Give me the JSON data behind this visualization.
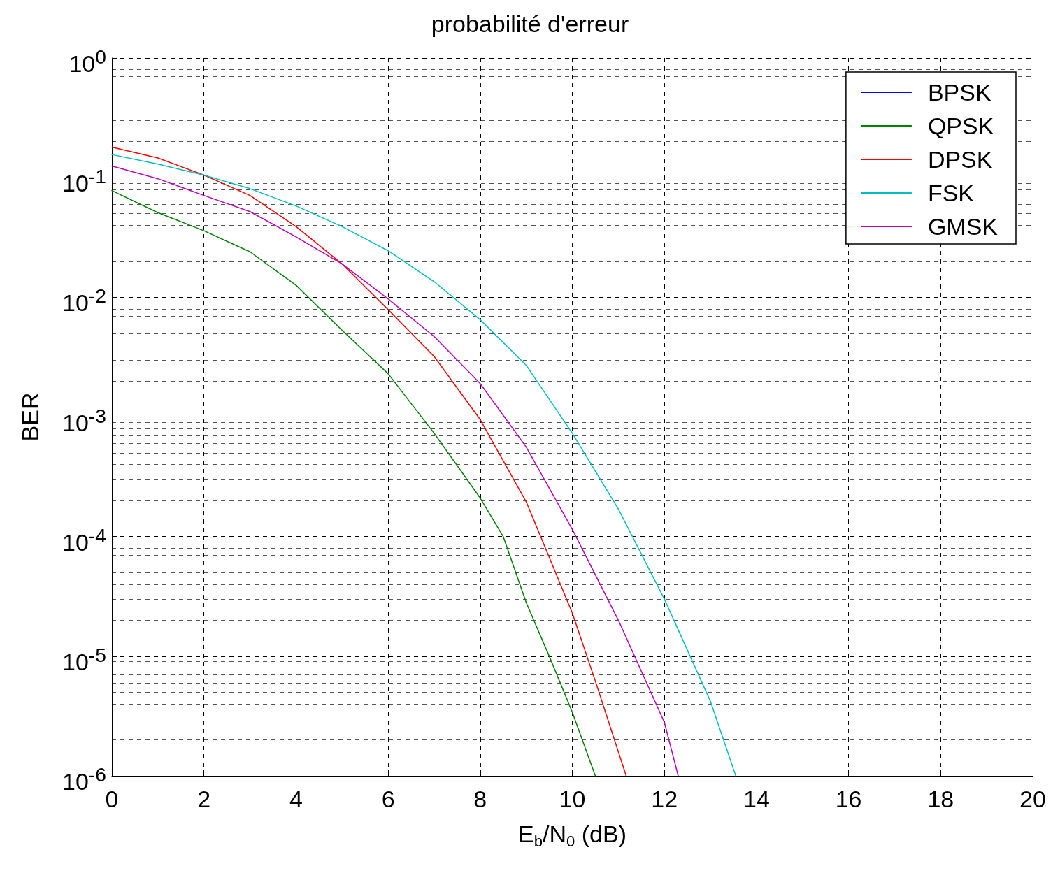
{
  "chart_data": {
    "type": "line",
    "title": "probabilité d'erreur",
    "xlabel": "E$_{b}$/N$_{0}$ (dB)",
    "ylabel": "BER",
    "log": "y",
    "grid": true,
    "legend": "top right",
    "xlim": [
      0,
      20
    ],
    "xticks": [
      0,
      2,
      4,
      6,
      8,
      10,
      12,
      14,
      16,
      18,
      20
    ],
    "ylim": [
      1e-06,
      1
    ],
    "yticks": [
      {
        "value": 1e-06,
        "label": "10$^{-6}$"
      },
      {
        "value": 1e-05,
        "label": "10$^{-5}$"
      },
      {
        "value": 0.0001,
        "label": "10$^{-4}$"
      },
      {
        "value": 0.001,
        "label": "10$^{-3}$"
      },
      {
        "value": 0.01,
        "label": "10$^{-2}$"
      },
      {
        "value": 0.1,
        "label": "10$^{-1}$"
      },
      {
        "value": 1,
        "label": "10$^{0}$"
      }
    ],
    "series": [
      {
        "name": "BPSK",
        "color": "#0000ff"
      },
      {
        "name": "QPSK",
        "color": "#008000",
        "x": [
          0,
          1,
          2,
          3,
          4,
          5,
          6,
          7,
          8,
          8.5,
          9,
          9.5,
          10,
          10.5
        ],
        "values": [
          0.078,
          0.051,
          0.036,
          0.024,
          0.0126,
          0.0053,
          0.0023,
          0.00073,
          0.00021,
          0.0001,
          2.8e-05,
          1e-05,
          3.4e-06,
          1e-06
        ]
      },
      {
        "name": "DPSK",
        "color": "#ff0000",
        "x": [
          0,
          1,
          2,
          3,
          4,
          5,
          6,
          7,
          8,
          9,
          10,
          10.5,
          11.17
        ],
        "values": [
          0.18,
          0.146,
          0.105,
          0.071,
          0.039,
          0.019,
          0.0079,
          0.0032,
          0.00095,
          0.000195,
          2.3e-05,
          6.2e-06,
          1e-06
        ]
      },
      {
        "name": "FSK",
        "color": "#00bfbf",
        "x": [
          0,
          1,
          2,
          3,
          4,
          5,
          6,
          7,
          8,
          9,
          10,
          11,
          12,
          13,
          13.55
        ],
        "values": [
          0.156,
          0.13,
          0.105,
          0.081,
          0.058,
          0.039,
          0.0245,
          0.0135,
          0.0065,
          0.0027,
          0.00073,
          0.00017,
          3e-05,
          4.2e-06,
          1e-06
        ]
      },
      {
        "name": "GMSK",
        "color": "#bf00bf",
        "x": [
          0,
          1,
          2,
          3,
          4,
          5,
          6,
          7,
          8,
          9,
          10,
          11,
          12,
          12.3
        ],
        "values": [
          0.125,
          0.098,
          0.071,
          0.052,
          0.032,
          0.019,
          0.0097,
          0.0047,
          0.0019,
          0.00056,
          0.000115,
          2e-05,
          2.8e-06,
          1e-06
        ]
      }
    ]
  }
}
